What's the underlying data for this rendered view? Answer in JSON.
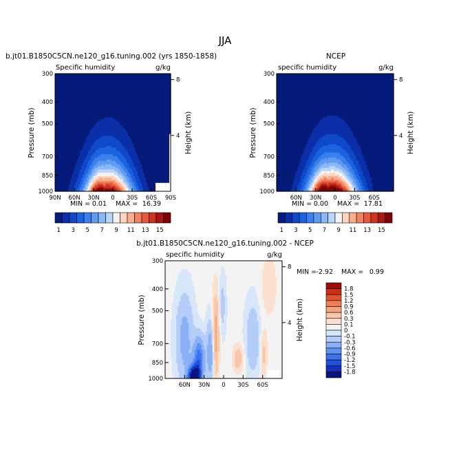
{
  "figure": {
    "season": "JJA"
  },
  "colors": {
    "abs_levels": [
      "#061a7a",
      "#0a2fa8",
      "#0f48c9",
      "#1c63df",
      "#3b80ec",
      "#5e9bf1",
      "#8ab8f6",
      "#b9d5fa",
      "#f3f3f3",
      "#fcd3bd",
      "#f9ad8f",
      "#f08362",
      "#e35a3c",
      "#cc3420",
      "#a81711",
      "#7a0407"
    ],
    "diff_levels": [
      "#0a1480",
      "#1431b8",
      "#2052dd",
      "#3b73ec",
      "#6091f2",
      "#8bb0f6",
      "#b4cdf8",
      "#d8e6fa",
      "#f3f3f3",
      "#fbe0cf",
      "#f8c7a9",
      "#f4a47e",
      "#ee7e55",
      "#e25330",
      "#c92f17",
      "#9b0d06"
    ]
  },
  "chart_data": [
    {
      "type": "heatmap",
      "title": "b.jt01.B1850C5CN.ne120_g16.tuning.002 (yrs 1850-1858)",
      "subtitle_left": "Specific humidity",
      "subtitle_right": "g/kg",
      "ylabel": "Pressure (mb)",
      "ylabel_right": "Height (km)",
      "x_ticks": [
        "90N",
        "60N",
        "30N",
        "0",
        "30S",
        "60S",
        "90S"
      ],
      "y_ticks": [
        "300",
        "400",
        "500",
        "700",
        "850",
        "1000"
      ],
      "y_ticks_right": [
        "8",
        "4"
      ],
      "min_label": "MIN =",
      "min_value": "0.01",
      "max_label": "MAX =",
      "max_value": "16.39",
      "colorbar_labels": [
        "1",
        "3",
        "5",
        "7",
        "9",
        "11",
        "13",
        "15"
      ],
      "peak_g_per_kg": 16.39
    },
    {
      "type": "heatmap",
      "title": "NCEP",
      "subtitle_left": "specific humidity",
      "subtitle_right": "g/kg",
      "ylabel": "Pressure (mb)",
      "ylabel_right": "Height (km)",
      "x_ticks": [
        "60N",
        "30N",
        "0",
        "30S",
        "60S"
      ],
      "y_ticks": [
        "300",
        "400",
        "500",
        "700",
        "850",
        "1000"
      ],
      "y_ticks_right": [
        "8",
        "4"
      ],
      "min_label": "MIN =",
      "min_value": "0.00",
      "max_label": "MAX =",
      "max_value": "17.81",
      "colorbar_labels": [
        "1",
        "3",
        "5",
        "7",
        "9",
        "11",
        "13",
        "15"
      ],
      "peak_g_per_kg": 17.81
    },
    {
      "type": "heatmap",
      "title": "b.jt01.B1850C5CN.ne120_g16.tuning.002 - NCEP",
      "subtitle_left": "specific humidity",
      "subtitle_right": "g/kg",
      "ylabel": "Pressure (mb)",
      "ylabel_right": "Height (km)",
      "x_ticks": [
        "60N",
        "30N",
        "0",
        "30S",
        "60S"
      ],
      "y_ticks": [
        "300",
        "400",
        "500",
        "700",
        "850",
        "1000"
      ],
      "y_ticks_right": [
        "8",
        "4"
      ],
      "min_label": "MIN =",
      "min_value": "-2.92",
      "max_label": "MAX =",
      "max_value": "0.99",
      "colorbar_labels": [
        "1.8",
        "1.5",
        "1.2",
        "0.9",
        "0.6",
        "0.3",
        "0.1",
        "0",
        "-0.1",
        "-0.3",
        "-0.6",
        "-0.9",
        "-1.2",
        "-1.5",
        "-1.8"
      ]
    }
  ]
}
